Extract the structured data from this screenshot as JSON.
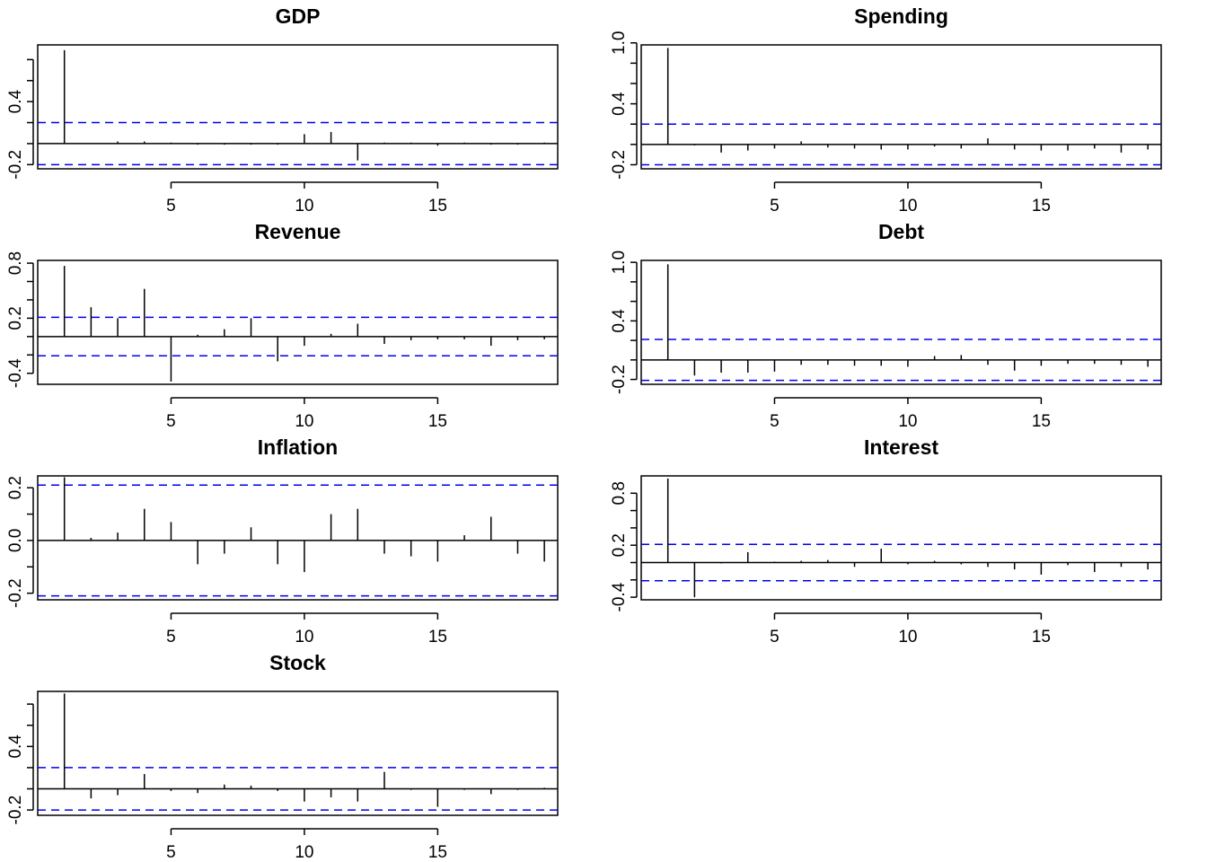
{
  "colors": {
    "axis": "#000000",
    "bound": "#0000ee",
    "spike": "#000000",
    "background": "#ffffff"
  },
  "chart_data": [
    {
      "type": "bar",
      "title": "GDP",
      "x": [
        1,
        2,
        3,
        4,
        5,
        6,
        7,
        8,
        9,
        10,
        11,
        12,
        13,
        14,
        15,
        16,
        17,
        18,
        19
      ],
      "values": [
        0.89,
        0.0,
        0.02,
        0.02,
        0.01,
        -0.01,
        -0.01,
        -0.01,
        -0.01,
        0.09,
        0.11,
        -0.16,
        0.01,
        0.01,
        -0.02,
        0.01,
        -0.01,
        -0.01,
        0.01
      ],
      "bounds": [
        0.2,
        -0.2
      ],
      "xlim": [
        0,
        19.5
      ],
      "ylim": [
        -0.24,
        0.94
      ],
      "xticks": [
        5,
        10,
        15
      ],
      "xtick_labels": [
        "5",
        "10",
        "15"
      ],
      "yticks": [
        -0.2,
        0.0,
        0.2,
        0.4,
        0.6,
        0.8
      ],
      "ytick_labels": [
        "-0.2",
        "",
        "",
        "0.4",
        "",
        ""
      ]
    },
    {
      "type": "bar",
      "title": "Spending",
      "x": [
        1,
        2,
        3,
        4,
        5,
        6,
        7,
        8,
        9,
        10,
        11,
        12,
        13,
        14,
        15,
        16,
        17,
        18,
        19
      ],
      "values": [
        0.95,
        -0.01,
        -0.08,
        -0.06,
        -0.04,
        0.03,
        -0.03,
        -0.04,
        -0.05,
        -0.05,
        -0.02,
        -0.04,
        0.06,
        -0.05,
        -0.06,
        -0.06,
        -0.04,
        -0.08,
        -0.05
      ],
      "bounds": [
        0.2,
        -0.2
      ],
      "xlim": [
        0,
        19.5
      ],
      "ylim": [
        -0.24,
        0.98
      ],
      "xticks": [
        5,
        10,
        15
      ],
      "xtick_labels": [
        "5",
        "10",
        "15"
      ],
      "yticks": [
        -0.2,
        0.0,
        0.2,
        0.4,
        0.6,
        0.8,
        1.0
      ],
      "ytick_labels": [
        "-0.2",
        "",
        "",
        "0.4",
        "",
        "",
        "1.0"
      ]
    },
    {
      "type": "bar",
      "title": "Revenue",
      "x": [
        1,
        2,
        3,
        4,
        5,
        6,
        7,
        8,
        9,
        10,
        11,
        12,
        13,
        14,
        15,
        16,
        17,
        18,
        19
      ],
      "values": [
        0.77,
        0.32,
        0.2,
        0.52,
        -0.49,
        0.02,
        0.08,
        0.2,
        -0.27,
        -0.1,
        0.03,
        0.14,
        -0.08,
        -0.04,
        -0.03,
        -0.03,
        -0.1,
        -0.04,
        -0.03
      ],
      "bounds": [
        0.21,
        -0.21
      ],
      "xlim": [
        0,
        19.5
      ],
      "ylim": [
        -0.52,
        0.83
      ],
      "xticks": [
        5,
        10,
        15
      ],
      "xtick_labels": [
        "5",
        "10",
        "15"
      ],
      "yticks": [
        -0.4,
        -0.2,
        0.0,
        0.2,
        0.4,
        0.6,
        0.8
      ],
      "ytick_labels": [
        "-0.4",
        "",
        "",
        "0.2",
        "",
        "",
        "0.8"
      ]
    },
    {
      "type": "bar",
      "title": "Debt",
      "x": [
        1,
        2,
        3,
        4,
        5,
        6,
        7,
        8,
        9,
        10,
        11,
        12,
        13,
        14,
        15,
        16,
        17,
        18,
        19
      ],
      "values": [
        0.98,
        -0.16,
        -0.13,
        -0.13,
        -0.12,
        -0.05,
        -0.05,
        -0.06,
        -0.06,
        -0.07,
        0.04,
        0.05,
        -0.05,
        -0.11,
        -0.06,
        -0.04,
        -0.04,
        -0.05,
        -0.07
      ],
      "bounds": [
        0.21,
        -0.21
      ],
      "xlim": [
        0,
        19.5
      ],
      "ylim": [
        -0.25,
        1.02
      ],
      "xticks": [
        5,
        10,
        15
      ],
      "xtick_labels": [
        "5",
        "10",
        "15"
      ],
      "yticks": [
        -0.2,
        0.0,
        0.2,
        0.4,
        0.6,
        0.8,
        1.0
      ],
      "ytick_labels": [
        "-0.2",
        "",
        "",
        "0.4",
        "",
        "",
        "1.0"
      ]
    },
    {
      "type": "bar",
      "title": "Inflation",
      "x": [
        1,
        2,
        3,
        4,
        5,
        6,
        7,
        8,
        9,
        10,
        11,
        12,
        13,
        14,
        15,
        16,
        17,
        18,
        19
      ],
      "values": [
        0.24,
        0.01,
        0.03,
        0.12,
        0.07,
        -0.09,
        -0.05,
        0.05,
        -0.09,
        -0.12,
        0.1,
        0.12,
        -0.05,
        -0.06,
        -0.08,
        0.02,
        0.09,
        -0.05,
        -0.08
      ],
      "bounds": [
        0.21,
        -0.21
      ],
      "xlim": [
        0,
        19.5
      ],
      "ylim": [
        -0.225,
        0.245
      ],
      "xticks": [
        5,
        10,
        15
      ],
      "xtick_labels": [
        "5",
        "10",
        "15"
      ],
      "yticks": [
        -0.2,
        -0.1,
        0.0,
        0.1,
        0.2
      ],
      "ytick_labels": [
        "-0.2",
        "",
        "0.0",
        "",
        "0.2"
      ]
    },
    {
      "type": "bar",
      "title": "Interest",
      "x": [
        1,
        2,
        3,
        4,
        5,
        6,
        7,
        8,
        9,
        10,
        11,
        12,
        13,
        14,
        15,
        16,
        17,
        18,
        19
      ],
      "values": [
        0.97,
        -0.4,
        -0.01,
        0.12,
        0.01,
        0.02,
        0.03,
        -0.05,
        0.16,
        -0.02,
        0.02,
        -0.02,
        -0.05,
        -0.08,
        -0.14,
        -0.03,
        -0.11,
        -0.05,
        -0.08
      ],
      "bounds": [
        0.21,
        -0.21
      ],
      "xlim": [
        0,
        19.5
      ],
      "ylim": [
        -0.43,
        1.0
      ],
      "xticks": [
        5,
        10,
        15
      ],
      "xtick_labels": [
        "5",
        "10",
        "15"
      ],
      "yticks": [
        -0.4,
        -0.2,
        0.0,
        0.2,
        0.4,
        0.6,
        0.8
      ],
      "ytick_labels": [
        "-0.4",
        "",
        "",
        "0.2",
        "",
        "",
        "0.8"
      ]
    },
    {
      "type": "bar",
      "title": "Stock",
      "x": [
        1,
        2,
        3,
        4,
        5,
        6,
        7,
        8,
        9,
        10,
        11,
        12,
        13,
        14,
        15,
        16,
        17,
        18,
        19
      ],
      "values": [
        0.9,
        -0.09,
        -0.06,
        0.14,
        -0.02,
        -0.04,
        0.04,
        0.03,
        -0.02,
        -0.12,
        -0.08,
        -0.12,
        0.16,
        -0.01,
        -0.17,
        -0.01,
        -0.05,
        -0.01,
        0.01
      ],
      "bounds": [
        0.2,
        -0.2
      ],
      "xlim": [
        0,
        19.5
      ],
      "ylim": [
        -0.25,
        0.92
      ],
      "xticks": [
        5,
        10,
        15
      ],
      "xtick_labels": [
        "5",
        "10",
        "15"
      ],
      "yticks": [
        -0.2,
        0.0,
        0.2,
        0.4,
        0.6,
        0.8
      ],
      "ytick_labels": [
        "-0.2",
        "",
        "",
        "0.4",
        "",
        ""
      ]
    }
  ]
}
